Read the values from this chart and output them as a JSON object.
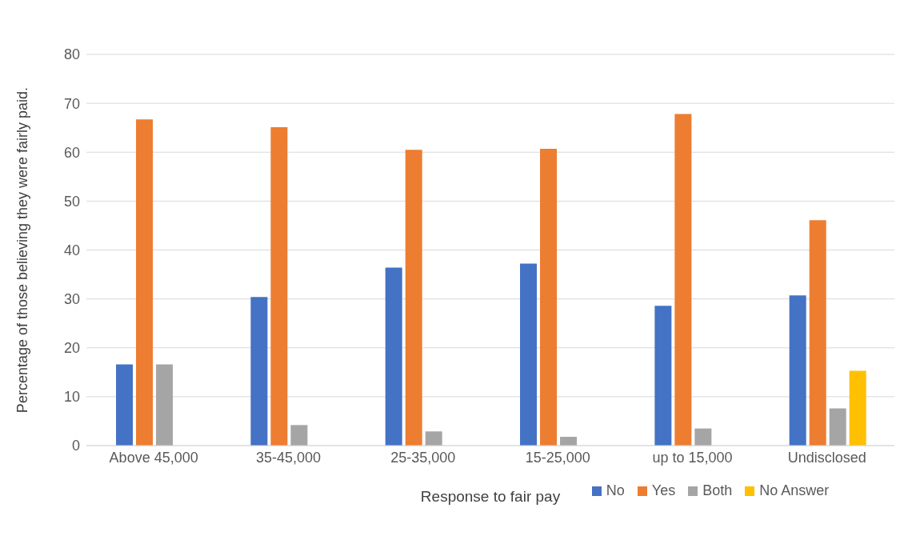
{
  "chart_data": {
    "type": "bar",
    "xlabel": "Response to fair pay",
    "ylabel": "Percentage of those believing they were fairly paid.",
    "categories": [
      "Above 45,000",
      "35-45,000",
      "25-35,000",
      "15-25,000",
      "up to 15,000",
      "Undisclosed"
    ],
    "series": [
      {
        "name": "No",
        "color": "#4472c4",
        "values": [
          16.6,
          30.4,
          36.4,
          37.2,
          28.6,
          30.7
        ]
      },
      {
        "name": "Yes",
        "color": "#ed7d31",
        "values": [
          66.7,
          65.1,
          60.5,
          60.7,
          67.8,
          46.1
        ]
      },
      {
        "name": "Both",
        "color": "#a5a5a5",
        "values": [
          16.6,
          4.2,
          2.9,
          1.8,
          3.5,
          7.6
        ]
      },
      {
        "name": "No Answer",
        "color": "#ffc000",
        "values": [
          null,
          null,
          null,
          null,
          null,
          15.3
        ]
      }
    ],
    "ylim": [
      0,
      80
    ],
    "yticks": [
      0,
      10,
      20,
      30,
      40,
      50,
      60,
      70,
      80
    ],
    "grid": "y",
    "legend": "bottom"
  }
}
